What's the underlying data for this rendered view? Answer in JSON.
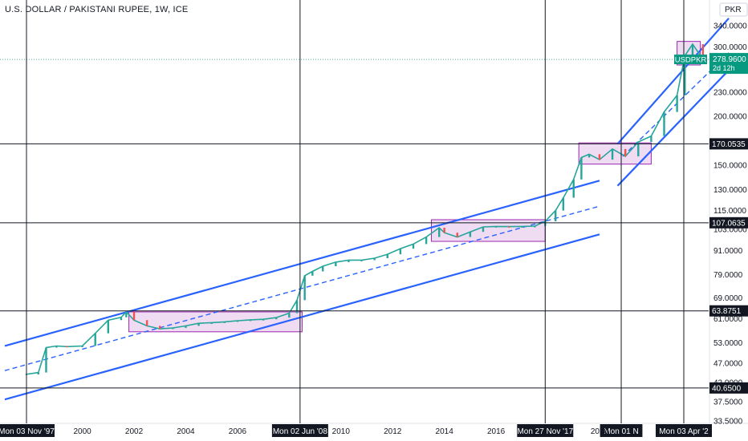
{
  "header": {
    "title": "U.S. DOLLAR / PAKISTANI RUPEE, 1W, ICE"
  },
  "currency_label": "PKR",
  "colors": {
    "channel": "#2962ff",
    "box_stroke": "#9c27b0",
    "box_fill": "#e1bee7",
    "up": "#26a69a",
    "down": "#ef5350",
    "badge": "#089981",
    "level_tag": "#131722"
  },
  "chart_data": {
    "type": "line",
    "title": "U.S. DOLLAR / PAKISTANI RUPEE, 1W, ICE",
    "symbol": "USDPKR",
    "last_price": "278.9600",
    "countdown": "2d 12h",
    "y_scale": "log",
    "ylim": [
      33.5,
      360
    ],
    "y_ticks": [
      "340.0000",
      "300.0000",
      "230.0000",
      "200.0000",
      "150.0000",
      "130.0000",
      "115.0000",
      "103.0000",
      "91.0000",
      "79.0000",
      "69.0000",
      "61.0000",
      "53.0000",
      "47.0000",
      "42.0000",
      "37.5000",
      "33.5000"
    ],
    "x_ticks": [
      "2000",
      "2002",
      "2004",
      "2006",
      "2010",
      "2012",
      "2014",
      "2016",
      "2020"
    ],
    "x_markers": [
      "Mon 03 Nov '97",
      "Mon 02 Jun '08",
      "Mon 27 Nov '17",
      "Mon 01 N",
      "Mon 03 Apr '2"
    ],
    "levels": [
      "170.0535",
      "107.0635",
      "63.8751",
      "40.6500"
    ],
    "x": [
      1997.8,
      1998.3,
      1998.6,
      1999.0,
      1999.4,
      2000.0,
      2000.5,
      2001.0,
      2001.5,
      2001.7,
      2002.0,
      2002.5,
      2003.0,
      2003.5,
      2004.0,
      2004.5,
      2005.0,
      2005.5,
      2006.0,
      2006.5,
      2007.0,
      2007.5,
      2008.0,
      2008.3,
      2008.6,
      2008.9,
      2009.3,
      2009.8,
      2010.3,
      2010.8,
      2011.3,
      2011.8,
      2012.3,
      2012.8,
      2013.3,
      2013.8,
      2014.0,
      2014.5,
      2015.0,
      2015.5,
      2016.0,
      2016.5,
      2017.0,
      2017.5,
      2017.9,
      2018.3,
      2018.6,
      2019.0,
      2019.3,
      2019.6,
      2020.0,
      2020.5,
      2021.0,
      2021.5,
      2022.0,
      2022.5,
      2023.0,
      2023.3,
      2023.6,
      2024.0
    ],
    "y": [
      44.0,
      44.5,
      51.5,
      52.0,
      51.8,
      52.0,
      56.0,
      60.5,
      61.5,
      63.5,
      60.5,
      58.5,
      57.5,
      57.8,
      58.5,
      59.4,
      59.6,
      59.9,
      60.3,
      60.6,
      60.8,
      61.4,
      63.0,
      68.0,
      78.5,
      80.5,
      83.0,
      85.0,
      86.0,
      86.0,
      87.0,
      89.0,
      92.0,
      94.5,
      98.5,
      104.0,
      101.0,
      98.5,
      101.5,
      104.5,
      104.8,
      104.7,
      104.8,
      105.0,
      108.0,
      115.0,
      124.0,
      138.0,
      157.0,
      160.0,
      155.0,
      165.0,
      158.0,
      172.0,
      178.0,
      205.0,
      226.0,
      285.0,
      305.0,
      278.96
    ],
    "series": [
      {
        "name": "USDPKR",
        "values": "y"
      }
    ],
    "xlabel": "",
    "ylabel": "",
    "grid": false
  }
}
